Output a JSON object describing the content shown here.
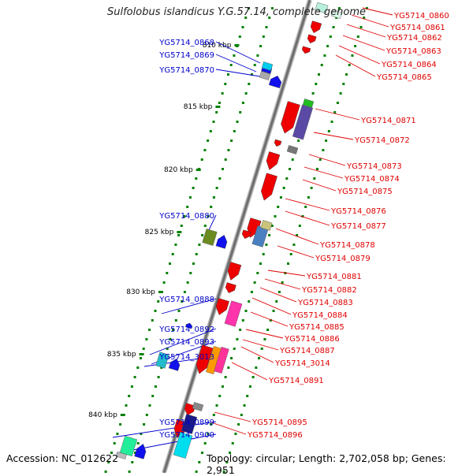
{
  "title": "Sulfolobus islandicus Y.G.57.14, complete genome",
  "accession": "Accession: NC_012622",
  "topology": "Topology: circular; Length: 2,702,058 bp; Genes: 2,951",
  "colors": {
    "left_label": "#0000cc",
    "right_label": "#e00000",
    "backbone": "#7a7a7a",
    "tick": "#008000"
  },
  "kbp_ticks": [
    "810 kbp",
    "815 kbp",
    "820 kbp",
    "825 kbp",
    "830 kbp",
    "835 kbp",
    "840 kbp"
  ],
  "left_labels": [
    "YG5714_0868",
    "YG5714_0869",
    "YG5714_0870",
    "YG5714_0880",
    "YG5714_0888",
    "YG5714_0892",
    "YG5714_0893",
    "YG5714_3013",
    "YG5714_0899",
    "YG5714_0900"
  ],
  "right_labels": [
    "YG5714_0860",
    "YG5714_0861",
    "YG5714_0862",
    "YG5714_0863",
    "YG5714_0864",
    "YG5714_0865",
    "YG5714_0871",
    "YG5714_0872",
    "YG5714_0873",
    "YG5714_0874",
    "YG5714_0875",
    "YG5714_0876",
    "YG5714_0877",
    "YG5714_0878",
    "YG5714_0879",
    "YG5714_0881",
    "YG5714_0882",
    "YG5714_0883",
    "YG5714_0884",
    "YG5714_0885",
    "YG5714_0886",
    "YG5714_0887",
    "YG5714_3014",
    "YG5714_0891",
    "YG5714_0895",
    "YG5714_0896"
  ]
}
